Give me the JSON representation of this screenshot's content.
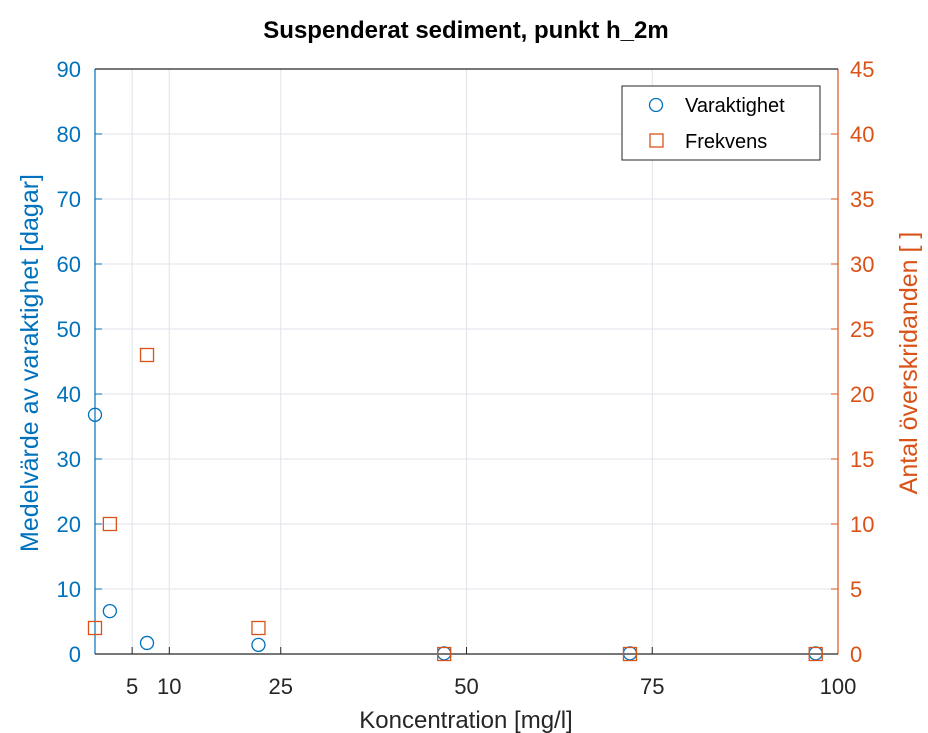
{
  "chart_data": {
    "type": "scatter",
    "title": "Suspenderat sediment, punkt h_2m",
    "xlabel": "Koncentration [mg/l]",
    "ylabel_left": "Medelvärde av varaktighet [dagar]",
    "ylabel_right": "Antal överskridanden [ ]",
    "xlim": [
      0,
      100
    ],
    "ylim_left": [
      0,
      90
    ],
    "ylim_right": [
      0,
      45
    ],
    "x_ticks": [
      5,
      10,
      25,
      50,
      75,
      100
    ],
    "y_ticks_left": [
      0,
      10,
      20,
      30,
      40,
      50,
      60,
      70,
      80,
      90
    ],
    "y_ticks_right": [
      0,
      5,
      10,
      15,
      20,
      25,
      30,
      35,
      40,
      45
    ],
    "grid": true,
    "legend_placement": "top-right",
    "series": [
      {
        "name": "Varaktighet",
        "axis": "left",
        "marker": "circle",
        "color": "#0072BD",
        "x": [
          0,
          2,
          7,
          22,
          47,
          72,
          97
        ],
        "y": [
          36.8,
          6.6,
          1.7,
          1.4,
          0.1,
          0.1,
          0.1
        ]
      },
      {
        "name": "Frekvens",
        "axis": "right",
        "marker": "square",
        "color": "#D95319",
        "x": [
          0,
          2,
          7,
          22,
          47,
          72,
          97
        ],
        "y": [
          2,
          10,
          23,
          2,
          0,
          0,
          0
        ]
      }
    ]
  }
}
